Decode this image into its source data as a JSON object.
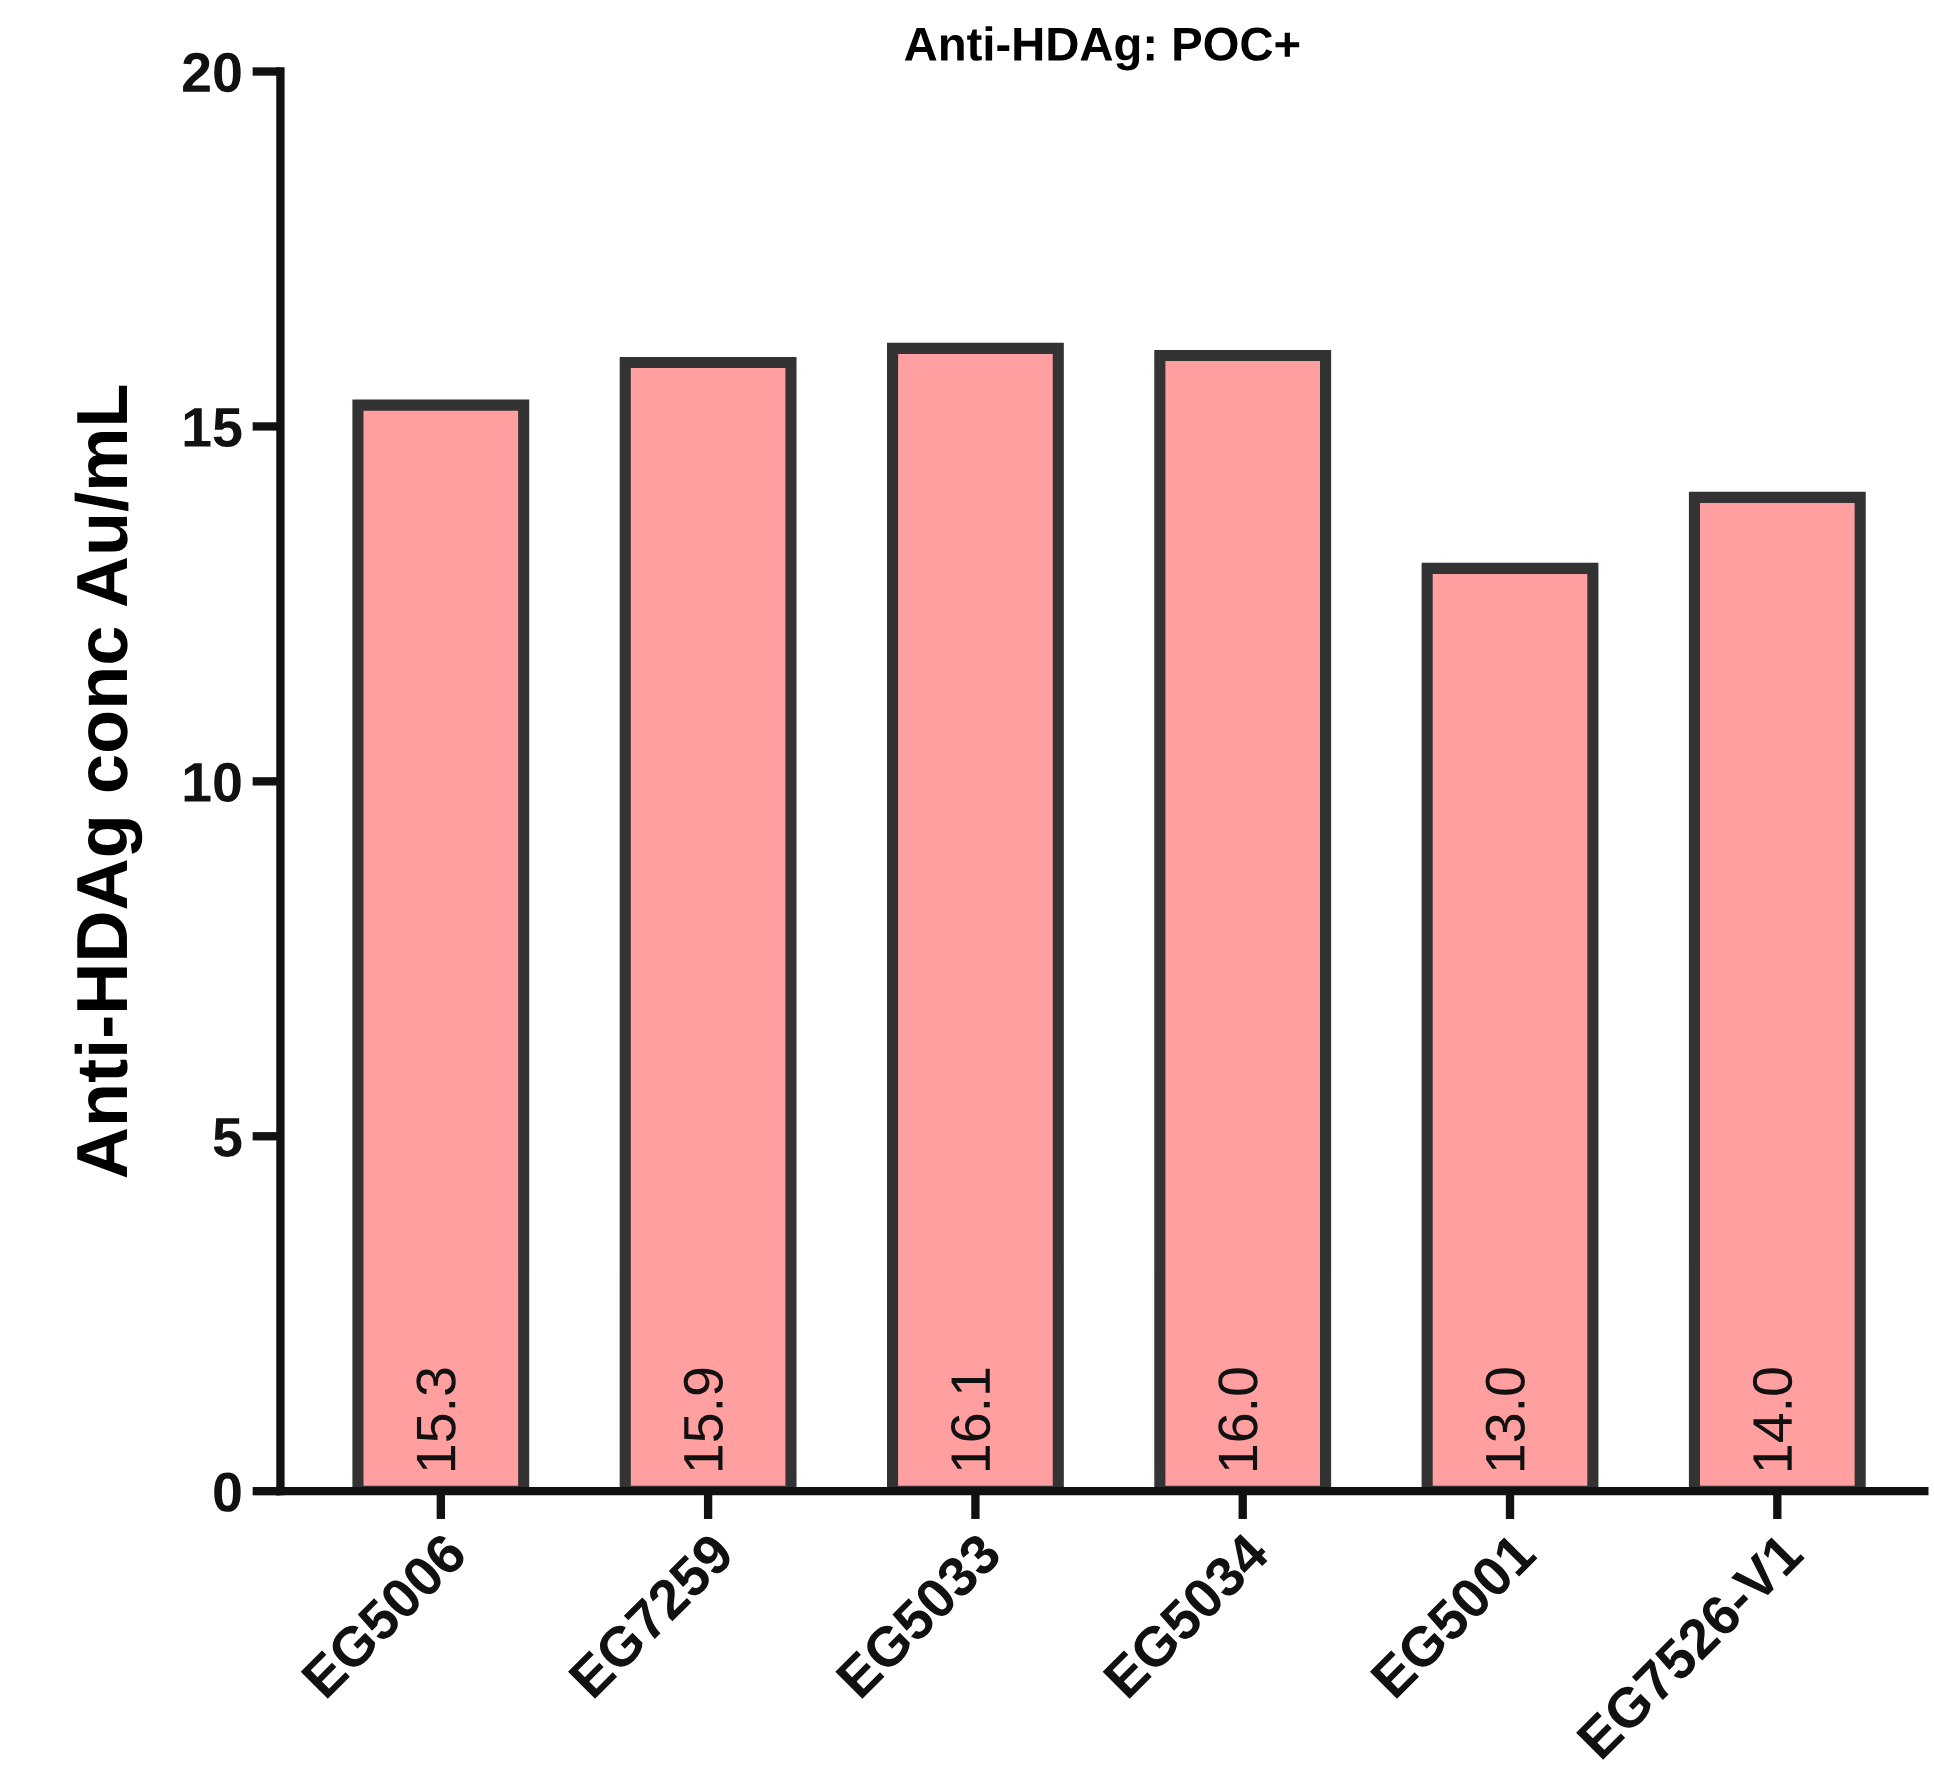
{
  "chart_data": {
    "type": "bar",
    "title": "Anti-HDAg: POC+",
    "ylabel": "Anti-HDAg conc Au/mL",
    "categories": [
      "EG5006",
      "EG7259",
      "EG5033",
      "EG5034",
      "EG5001",
      "EG7526-V1"
    ],
    "values": [
      15.3,
      15.9,
      16.1,
      16.0,
      13.0,
      14.0
    ],
    "value_labels": [
      "15.3",
      "15.9",
      "16.1",
      "16.0",
      "13.0",
      "14.0"
    ],
    "color": "#ff9f9f",
    "ylim": [
      0,
      20
    ],
    "yticks": [
      0,
      5,
      10,
      15,
      20
    ],
    "grid": false,
    "legend": false
  }
}
